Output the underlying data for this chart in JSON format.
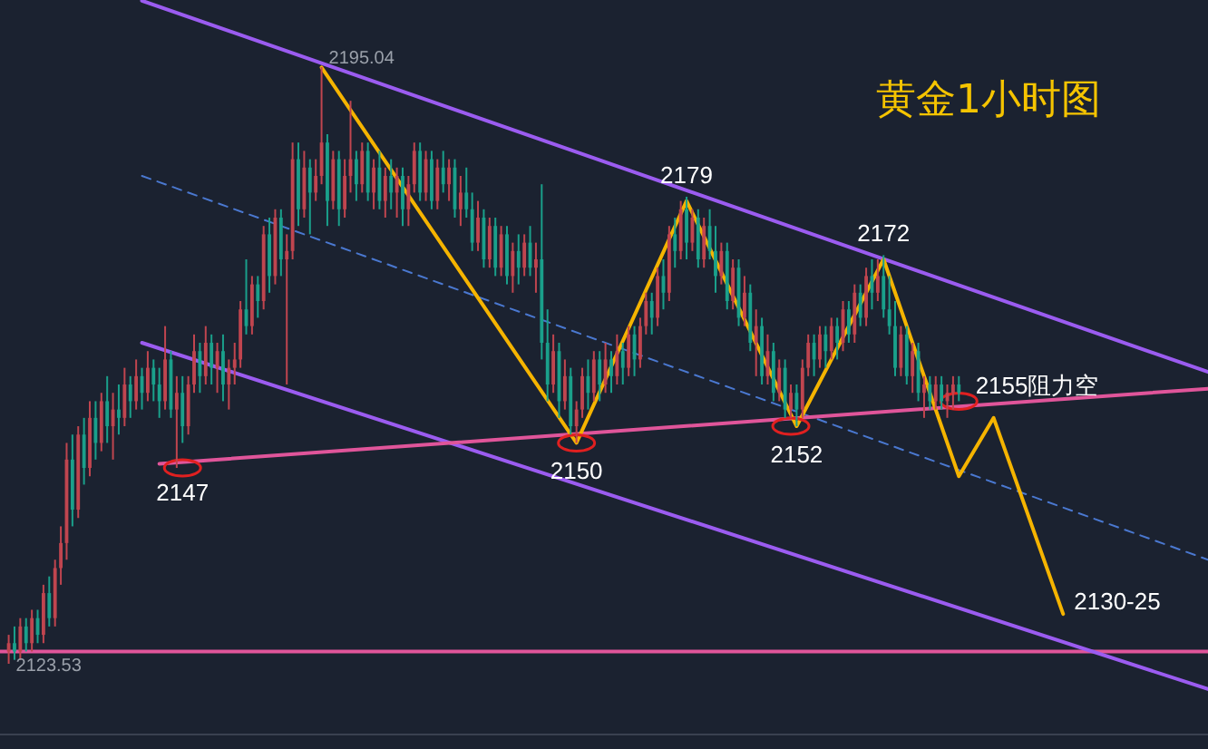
{
  "chart_data": {
    "type": "candlestick",
    "title": "黄金1小时图",
    "categories": [
      null,
      null,
      null,
      null,
      null,
      null,
      null,
      null,
      null,
      null,
      null,
      null,
      null,
      null,
      null,
      null,
      null,
      null,
      null,
      null,
      null,
      null,
      null,
      null,
      null,
      null,
      null,
      null,
      null,
      null,
      null,
      null,
      null,
      null,
      null,
      null,
      null,
      null,
      null,
      null,
      null,
      null,
      null,
      null,
      null,
      null,
      null,
      null,
      null,
      null,
      null,
      null,
      null,
      null,
      null,
      null,
      null,
      null,
      null,
      null,
      null,
      null,
      null,
      null,
      null,
      null,
      null,
      null,
      null,
      null,
      null,
      null,
      null,
      null,
      null,
      null,
      null,
      null,
      null,
      null,
      null,
      null,
      null,
      null,
      null,
      null,
      null,
      null,
      null,
      null,
      null,
      null,
      null,
      null,
      null,
      null,
      null,
      null,
      null,
      null,
      null,
      null,
      null,
      null,
      null,
      null,
      null,
      null,
      null,
      null,
      null,
      null,
      null,
      null,
      null,
      null,
      null,
      null,
      null,
      null,
      null,
      null,
      null,
      null,
      null,
      null,
      null,
      null,
      null,
      null,
      null,
      null,
      null,
      null,
      null,
      null,
      null,
      null,
      null,
      null,
      null,
      null,
      null,
      null,
      null,
      null,
      null,
      null,
      null,
      null,
      null,
      null,
      null,
      null,
      null,
      null,
      null,
      null,
      null,
      null,
      null,
      null,
      null,
      null,
      null,
      null,
      null,
      null,
      null,
      null,
      null,
      null,
      null,
      null,
      null,
      null,
      null,
      null,
      null,
      null,
      null,
      null,
      null,
      null,
      null,
      null,
      null,
      null,
      null,
      null,
      null,
      null,
      null,
      null,
      null,
      null,
      null,
      null,
      null,
      null,
      null,
      null,
      null,
      null,
      null,
      null,
      null,
      null
    ],
    "colors": [
      "#c0454f",
      "#1aa08b",
      "#c0454f",
      "#1aa08b",
      "#c0454f",
      "#1aa08b",
      "#c0454f",
      "#1aa08b",
      "#c0454f",
      "#c0454f",
      "#c0454f",
      "#1aa08b",
      "#c0454f",
      "#1aa08b",
      "#c0454f",
      "#1aa08b",
      "#c0454f",
      "#1aa08b",
      "#c0454f",
      "#1aa08b",
      "#c0454f",
      "#1aa08b",
      "#c0454f",
      "#1aa08b",
      "#c0454f",
      "#1aa08b",
      "#1aa08b",
      "#c0454f",
      "#1aa08b",
      "#c0454f",
      "#1aa08b",
      "#c0454f",
      "#c0454f",
      "#1aa08b",
      "#c0454f",
      "#1aa08b",
      "#c0454f",
      "#1aa08b",
      "#c0454f",
      "#c0454f",
      "#c0454f",
      "#1aa08b",
      "#c0454f",
      "#1aa08b",
      "#c0454f",
      "#1aa08b",
      "#c0454f",
      "#1aa08b",
      "#c0454f",
      "#c0454f",
      "#1aa08b",
      "#c0454f",
      "#1aa08b",
      "#c0454f",
      "#c0454f",
      "#1aa08b",
      "#c0454f",
      "#1aa08b",
      "#c0454f",
      "#c0454f",
      "#1aa08b",
      "#c0454f",
      "#1aa08b",
      "#c0454f",
      "#1aa08b",
      "#c0454f",
      "#1aa08b",
      "#c0454f",
      "#1aa08b",
      "#c0454f",
      "#c0454f",
      "#1aa08b",
      "#c0454f",
      "#1aa08b",
      "#c0454f",
      "#1aa08b",
      "#c0454f",
      "#1aa08b",
      "#c0454f",
      "#1aa08b",
      "#1aa08b",
      "#c0454f",
      "#1aa08b",
      "#c0454f",
      "#1aa08b",
      "#c0454f",
      "#1aa08b",
      "#c0454f",
      "#1aa08b",
      "#c0454f",
      "#1aa08b",
      "#c0454f",
      "#1aa08b",
      "#1aa08b",
      "#c0454f",
      "#1aa08b",
      "#c0454f",
      "#1aa08b",
      "#c0454f",
      "#c0454f",
      "#1aa08b",
      "#c0454f",
      "#1aa08b",
      "#c0454f",
      "#1aa08b",
      "#c0454f",
      "#1aa08b",
      "#c0454f",
      "#1aa08b",
      "#c0454f",
      "#c0454f",
      "#1aa08b",
      "#c0454f",
      "#1aa08b",
      "#c0454f",
      "#1aa08b",
      "#c0454f",
      "#1aa08b",
      "#c0454f",
      "#1aa08b",
      "#c0454f",
      "#1aa08b",
      "#1aa08b",
      "#c0454f",
      "#1aa08b",
      "#c0454f",
      "#1aa08b",
      "#c0454f",
      "#1aa08b",
      "#c0454f",
      "#1aa08b",
      "#c0454f",
      "#1aa08b",
      "#c0454f",
      "#1aa08b",
      "#c0454f",
      "#1aa08b",
      "#c0454f",
      "#c0454f",
      "#1aa08b",
      "#c0454f",
      "#1aa08b",
      "#c0454f",
      "#1aa08b",
      "#c0454f",
      "#1aa08b",
      "#c0454f",
      "#1aa08b",
      "#c0454f",
      "#1aa08b",
      "#c0454f",
      "#1aa08b",
      "#1aa08b",
      "#1aa08b",
      "#c0454f",
      "#1aa08b",
      "#c0454f",
      "#1aa08b",
      "#c0454f",
      "#1aa08b",
      "#c0454f",
      "#1aa08b",
      "#c0454f",
      "#c0454f",
      "#1aa08b",
      null,
      null,
      null,
      null,
      null,
      null,
      null,
      null,
      null,
      null,
      null,
      null,
      null,
      null,
      null,
      null,
      null,
      null,
      null,
      null,
      null,
      null,
      null,
      null,
      null,
      null,
      null,
      null,
      null,
      null,
      null,
      null,
      null,
      null,
      null,
      null,
      null,
      null,
      null,
      null,
      null,
      null,
      null
    ],
    "ohlc": [
      [
        2125,
        2127,
        2123.53,
        2126
      ],
      [
        2126,
        2128,
        2124,
        2125
      ],
      [
        2125,
        2129,
        2124,
        2128
      ],
      [
        2128,
        2129,
        2125,
        2126
      ],
      [
        2126,
        2130,
        2125,
        2129
      ],
      [
        2129,
        2130,
        2126,
        2127
      ],
      [
        2127,
        2133,
        2126,
        2132
      ],
      [
        2132,
        2134,
        2128,
        2129
      ],
      [
        2129,
        2136,
        2128,
        2135
      ],
      [
        2135,
        2140,
        2133,
        2138
      ],
      [
        2138,
        2150,
        2136,
        2148
      ],
      [
        2148,
        2151,
        2140,
        2142
      ],
      [
        2142,
        2152,
        2141,
        2151
      ],
      [
        2151,
        2153,
        2145,
        2147
      ],
      [
        2147,
        2155,
        2146,
        2153
      ],
      [
        2153,
        2155,
        2148,
        2150
      ],
      [
        2150,
        2156,
        2149,
        2155
      ],
      [
        2155,
        2158,
        2150,
        2152
      ],
      [
        2152,
        2156,
        2148,
        2154
      ],
      [
        2154,
        2157,
        2151,
        2153
      ],
      [
        2153,
        2159,
        2152,
        2157
      ],
      [
        2157,
        2158,
        2153,
        2155
      ],
      [
        2155,
        2160,
        2154,
        2158
      ],
      [
        2158,
        2159,
        2154,
        2156
      ],
      [
        2156,
        2161,
        2155,
        2159
      ],
      [
        2159,
        2160,
        2155,
        2157
      ],
      [
        2157,
        2159,
        2153,
        2155
      ],
      [
        2155,
        2164,
        2154,
        2160
      ],
      [
        2160,
        2161,
        2153,
        2154
      ],
      [
        2154,
        2158,
        2147,
        2156
      ],
      [
        2156,
        2158,
        2150,
        2152
      ],
      [
        2152,
        2158,
        2151,
        2157
      ],
      [
        2157,
        2163,
        2156,
        2161
      ],
      [
        2161,
        2162,
        2156,
        2158
      ],
      [
        2158,
        2164,
        2157,
        2162
      ],
      [
        2162,
        2163,
        2157,
        2159
      ],
      [
        2159,
        2162,
        2156,
        2161
      ],
      [
        2161,
        2163,
        2155,
        2157
      ],
      [
        2157,
        2160,
        2154,
        2159
      ],
      [
        2159,
        2162,
        2157,
        2160
      ],
      [
        2160,
        2167,
        2159,
        2166
      ],
      [
        2166,
        2172,
        2163,
        2164
      ],
      [
        2164,
        2170,
        2163,
        2169
      ],
      [
        2169,
        2170,
        2165,
        2167
      ],
      [
        2167,
        2176,
        2166,
        2175
      ],
      [
        2175,
        2177,
        2168,
        2170
      ],
      [
        2170,
        2178,
        2169,
        2177
      ],
      [
        2177,
        2178,
        2170,
        2172
      ],
      [
        2172,
        2175,
        2157,
        2173
      ],
      [
        2173,
        2186,
        2172,
        2184
      ],
      [
        2184,
        2186,
        2176,
        2178
      ],
      [
        2178,
        2185,
        2177,
        2183
      ],
      [
        2183,
        2184,
        2175,
        2180
      ],
      [
        2180,
        2184,
        2179,
        2182
      ],
      [
        2182,
        2195.04,
        2181,
        2186
      ],
      [
        2186,
        2187,
        2176,
        2179
      ],
      [
        2179,
        2185,
        2178,
        2184
      ],
      [
        2184,
        2185,
        2176,
        2178
      ],
      [
        2178,
        2184,
        2177,
        2182
      ],
      [
        2182,
        2191,
        2180,
        2184
      ],
      [
        2184,
        2185,
        2179,
        2181
      ],
      [
        2181,
        2186,
        2180,
        2185
      ],
      [
        2185,
        2186,
        2179,
        2180
      ],
      [
        2180,
        2184,
        2178,
        2183
      ],
      [
        2183,
        2185,
        2178,
        2179
      ],
      [
        2179,
        2183,
        2177,
        2182
      ],
      [
        2182,
        2184,
        2178,
        2180
      ],
      [
        2180,
        2183,
        2177,
        2182
      ],
      [
        2182,
        2183,
        2176,
        2178
      ],
      [
        2178,
        2182,
        2176,
        2181
      ],
      [
        2181,
        2186,
        2180,
        2185
      ],
      [
        2185,
        2186,
        2179,
        2180
      ],
      [
        2180,
        2185,
        2179,
        2184
      ],
      [
        2184,
        2185,
        2178,
        2179
      ],
      [
        2179,
        2184,
        2178,
        2183
      ],
      [
        2183,
        2185,
        2180,
        2181
      ],
      [
        2181,
        2184,
        2179,
        2183
      ],
      [
        2183,
        2184,
        2177,
        2178
      ],
      [
        2178,
        2182,
        2176,
        2180
      ],
      [
        2180,
        2183,
        2177,
        2178
      ],
      [
        2178,
        2180,
        2173,
        2174
      ],
      [
        2174,
        2179,
        2173,
        2177
      ],
      [
        2177,
        2178,
        2171,
        2172
      ],
      [
        2172,
        2177,
        2171,
        2176
      ],
      [
        2176,
        2177,
        2170,
        2171
      ],
      [
        2171,
        2176,
        2170,
        2175
      ],
      [
        2175,
        2176,
        2169,
        2170
      ],
      [
        2170,
        2174,
        2168,
        2173
      ],
      [
        2173,
        2175,
        2169,
        2171
      ],
      [
        2171,
        2175,
        2170,
        2174
      ],
      [
        2174,
        2176,
        2170,
        2171
      ],
      [
        2171,
        2174,
        2168,
        2172
      ],
      [
        2172,
        2181,
        2160,
        2162
      ],
      [
        2162,
        2166,
        2155,
        2157
      ],
      [
        2157,
        2163,
        2156,
        2161
      ],
      [
        2161,
        2162,
        2153,
        2155
      ],
      [
        2155,
        2160,
        2154,
        2158
      ],
      [
        2158,
        2159,
        2151,
        2152
      ],
      [
        2152,
        2155,
        2150,
        2154
      ],
      [
        2154,
        2159,
        2153,
        2158
      ],
      [
        2158,
        2160,
        2154,
        2156
      ],
      [
        2156,
        2161,
        2155,
        2160
      ],
      [
        2160,
        2161,
        2155,
        2157
      ],
      [
        2157,
        2162,
        2156,
        2160
      ],
      [
        2160,
        2161,
        2156,
        2158
      ],
      [
        2158,
        2163,
        2157,
        2161
      ],
      [
        2161,
        2162,
        2157,
        2159
      ],
      [
        2159,
        2164,
        2158,
        2163
      ],
      [
        2163,
        2164,
        2158,
        2160
      ],
      [
        2160,
        2165,
        2159,
        2164
      ],
      [
        2164,
        2168,
        2163,
        2167
      ],
      [
        2167,
        2168,
        2163,
        2165
      ],
      [
        2165,
        2171,
        2164,
        2170
      ],
      [
        2170,
        2172,
        2166,
        2168
      ],
      [
        2168,
        2176,
        2167,
        2175
      ],
      [
        2175,
        2177,
        2171,
        2173
      ],
      [
        2173,
        2179,
        2172,
        2178
      ],
      [
        2178,
        2179.5,
        2172,
        2174
      ],
      [
        2174,
        2178,
        2173,
        2177
      ],
      [
        2177,
        2178,
        2171,
        2172
      ],
      [
        2172,
        2177,
        2171,
        2176
      ],
      [
        2176,
        2178,
        2172,
        2173
      ],
      [
        2173,
        2176,
        2168,
        2170
      ],
      [
        2170,
        2174,
        2169,
        2173
      ],
      [
        2173,
        2174,
        2166,
        2167
      ],
      [
        2167,
        2172,
        2166,
        2171
      ],
      [
        2171,
        2172,
        2164,
        2165
      ],
      [
        2165,
        2170,
        2164,
        2168
      ],
      [
        2168,
        2169,
        2161,
        2162
      ],
      [
        2162,
        2166,
        2158,
        2164
      ],
      [
        2164,
        2165,
        2157,
        2158
      ],
      [
        2158,
        2163,
        2157,
        2161
      ],
      [
        2161,
        2162,
        2155,
        2156
      ],
      [
        2156,
        2160,
        2155,
        2159
      ],
      [
        2159,
        2160,
        2153,
        2154
      ],
      [
        2154,
        2157,
        2153,
        2156
      ],
      [
        2156,
        2157,
        2152,
        2154
      ],
      [
        2154,
        2160,
        2153,
        2159
      ],
      [
        2159,
        2163,
        2158,
        2162
      ],
      [
        2162,
        2163,
        2158,
        2160
      ],
      [
        2160,
        2164,
        2159,
        2163
      ],
      [
        2163,
        2164,
        2159,
        2161
      ],
      [
        2161,
        2165,
        2160,
        2164
      ],
      [
        2164,
        2165,
        2160,
        2162
      ],
      [
        2162,
        2167,
        2161,
        2166
      ],
      [
        2166,
        2167,
        2162,
        2163
      ],
      [
        2163,
        2169,
        2162,
        2168
      ],
      [
        2168,
        2169,
        2164,
        2165
      ],
      [
        2165,
        2171,
        2164,
        2170
      ],
      [
        2170,
        2172,
        2166,
        2168
      ],
      [
        2168,
        2172,
        2167,
        2170
      ],
      [
        2170,
        2172.5,
        2165,
        2166
      ],
      [
        2166,
        2170,
        2163,
        2164
      ],
      [
        2164,
        2167,
        2158,
        2159
      ],
      [
        2159,
        2164,
        2158,
        2163
      ],
      [
        2163,
        2164,
        2157,
        2158
      ],
      [
        2158,
        2162,
        2156,
        2161
      ],
      [
        2161,
        2162,
        2155,
        2156
      ],
      [
        2156,
        2158,
        2153,
        2157
      ],
      [
        2157,
        2158,
        2154,
        2155
      ],
      [
        2155,
        2158,
        2154,
        2157
      ],
      [
        2157,
        2158,
        2154,
        2155
      ],
      [
        2155,
        2157,
        2153,
        2156
      ],
      [
        2156,
        2158,
        2154,
        2157
      ],
      [
        2157,
        2158,
        2155,
        2156
      ],
      null,
      null,
      null,
      null,
      null,
      null,
      null,
      null,
      null,
      null,
      null,
      null,
      null,
      null,
      null,
      null,
      null,
      null,
      null,
      null,
      null,
      null,
      null,
      null,
      null,
      null,
      null,
      null,
      null,
      null,
      null,
      null,
      null,
      null,
      null,
      null,
      null,
      null,
      null,
      null,
      null,
      null,
      null
    ],
    "series": [
      {
        "type": "line",
        "color": "#9b5cf0",
        "line_style": "solid",
        "values": [
          null,
          null,
          null,
          null,
          null,
          null,
          null,
          null,
          null,
          null,
          null,
          null,
          null,
          null,
          null,
          null,
          null,
          null,
          null,
          null,
          null,
          null,
          null,
          2203,
          null,
          null,
          null,
          null,
          null,
          null,
          null,
          null,
          null,
          null,
          null,
          null,
          null,
          null,
          null,
          null,
          null,
          null,
          null,
          null,
          null,
          null,
          null,
          null,
          null,
          null,
          null,
          null,
          null,
          null,
          null,
          null,
          null,
          null,
          null,
          null,
          null,
          null,
          null,
          null,
          null,
          null,
          null,
          null,
          null,
          null,
          null,
          null,
          null,
          null,
          null,
          null,
          null,
          null,
          null,
          null,
          null,
          null,
          null,
          null,
          null,
          null,
          null,
          null,
          null,
          null,
          null,
          null,
          null,
          null,
          null,
          null,
          null,
          null,
          null,
          null,
          null,
          null,
          null,
          null,
          null,
          null,
          null,
          null,
          null,
          null,
          null,
          null,
          null,
          null,
          null,
          null,
          null,
          null,
          null,
          null,
          null,
          null,
          null,
          null,
          null,
          null,
          null,
          null,
          null,
          null,
          null,
          null,
          null,
          null,
          null,
          null,
          null,
          null,
          null,
          null,
          null,
          null,
          null,
          null,
          null,
          null,
          null,
          null,
          null,
          null,
          null,
          null,
          null,
          null,
          null,
          null,
          null,
          null,
          null,
          null,
          null,
          null,
          null,
          null,
          null,
          null,
          null,
          null,
          null,
          null,
          null,
          null,
          null,
          null,
          null,
          null,
          null,
          null,
          null,
          null,
          null,
          null,
          null,
          null,
          null,
          null,
          null,
          null,
          null,
          null,
          null,
          null,
          null,
          null,
          null,
          null,
          null,
          null,
          null,
          null,
          null,
          null,
          null,
          null,
          null,
          null,
          null,
          2158.5
        ]
      },
      {
        "type": "line",
        "color": "#9b5cf0",
        "line_style": "solid",
        "values": [
          null,
          null,
          null,
          null,
          null,
          null,
          null,
          null,
          null,
          null,
          null,
          null,
          null,
          null,
          null,
          null,
          null,
          null,
          null,
          null,
          null,
          null,
          null,
          2162,
          null,
          null,
          null,
          null,
          null,
          null,
          null,
          null,
          null,
          null,
          null,
          null,
          null,
          null,
          null,
          null,
          null,
          null,
          null,
          null,
          null,
          null,
          null,
          null,
          null,
          null,
          null,
          null,
          null,
          null,
          null,
          null,
          null,
          null,
          null,
          null,
          null,
          null,
          null,
          null,
          null,
          null,
          null,
          null,
          null,
          null,
          null,
          null,
          null,
          null,
          null,
          null,
          null,
          null,
          null,
          null,
          null,
          null,
          null,
          null,
          null,
          null,
          null,
          null,
          null,
          null,
          null,
          null,
          null,
          null,
          null,
          null,
          null,
          null,
          null,
          null,
          null,
          null,
          null,
          null,
          null,
          null,
          null,
          null,
          null,
          null,
          null,
          null,
          null,
          null,
          null,
          null,
          null,
          null,
          null,
          null,
          null,
          null,
          null,
          null,
          null,
          null,
          null,
          null,
          null,
          null,
          null,
          null,
          null,
          null,
          null,
          null,
          null,
          null,
          null,
          null,
          null,
          null,
          null,
          null,
          null,
          null,
          null,
          null,
          null,
          null,
          null,
          null,
          null,
          null,
          null,
          null,
          null,
          null,
          null,
          null,
          null,
          null,
          null,
          null,
          null,
          null,
          null,
          null,
          null,
          null,
          null,
          null,
          null,
          null,
          null,
          null,
          null,
          null,
          null,
          null,
          null,
          null,
          null,
          null,
          null,
          null,
          null,
          null,
          null,
          null,
          null,
          null,
          null,
          null,
          null,
          null,
          null,
          null,
          null,
          null,
          null,
          null,
          null,
          null,
          null,
          null,
          null,
          2120.5
        ]
      },
      {
        "type": "line",
        "color": "#4a78d0",
        "line_style": "dashed",
        "values": [
          null,
          null,
          null,
          null,
          null,
          null,
          null,
          null,
          null,
          null,
          null,
          null,
          null,
          null,
          null,
          null,
          null,
          null,
          null,
          null,
          null,
          null,
          null,
          2182,
          null,
          null,
          null,
          null,
          null,
          null,
          null,
          null,
          null,
          null,
          null,
          null,
          null,
          null,
          null,
          null,
          null,
          null,
          null,
          null,
          null,
          null,
          null,
          null,
          null,
          null,
          null,
          null,
          null,
          null,
          null,
          null,
          null,
          null,
          null,
          null,
          null,
          null,
          null,
          null,
          null,
          null,
          null,
          null,
          null,
          null,
          null,
          null,
          null,
          null,
          null,
          null,
          null,
          null,
          null,
          null,
          null,
          null,
          null,
          null,
          null,
          null,
          null,
          null,
          null,
          null,
          null,
          null,
          null,
          null,
          null,
          null,
          null,
          null,
          null,
          null,
          null,
          null,
          null,
          null,
          null,
          null,
          null,
          null,
          null,
          null,
          null,
          null,
          null,
          null,
          null,
          null,
          null,
          null,
          null,
          null,
          null,
          null,
          null,
          null,
          null,
          null,
          null,
          null,
          null,
          null,
          null,
          null,
          null,
          null,
          null,
          null,
          null,
          null,
          null,
          null,
          null,
          null,
          null,
          null,
          null,
          null,
          null,
          null,
          null,
          null,
          null,
          null,
          null,
          null,
          null,
          null,
          null,
          null,
          null,
          null,
          null,
          null,
          null,
          null,
          null,
          null,
          null,
          null,
          null,
          null,
          null,
          null,
          null,
          null,
          null,
          null,
          null,
          null,
          null,
          null,
          null,
          null,
          null,
          null,
          null,
          null,
          null,
          null,
          null,
          null,
          null,
          null,
          null,
          null,
          null,
          null,
          null,
          null,
          null,
          null,
          null,
          null,
          null,
          null,
          null,
          null,
          null,
          2136
        ]
      },
      {
        "type": "line",
        "color": "#e0559a",
        "line_style": "solid",
        "values": [
          null,
          null,
          null,
          null,
          null,
          null,
          null,
          null,
          null,
          null,
          null,
          null,
          null,
          null,
          null,
          null,
          null,
          null,
          null,
          null,
          null,
          null,
          null,
          null,
          null,
          null,
          2147.5,
          null,
          null,
          null,
          null,
          null,
          null,
          null,
          null,
          null,
          null,
          null,
          null,
          null,
          null,
          null,
          null,
          null,
          null,
          null,
          null,
          null,
          null,
          null,
          null,
          null,
          null,
          null,
          null,
          null,
          null,
          null,
          null,
          null,
          null,
          null,
          null,
          null,
          null,
          null,
          null,
          null,
          null,
          null,
          null,
          null,
          null,
          null,
          null,
          null,
          null,
          null,
          null,
          null,
          null,
          null,
          null,
          null,
          null,
          null,
          null,
          null,
          null,
          null,
          null,
          null,
          null,
          null,
          null,
          null,
          null,
          null,
          null,
          null,
          null,
          null,
          null,
          null,
          null,
          null,
          null,
          null,
          null,
          null,
          null,
          null,
          null,
          null,
          null,
          null,
          null,
          null,
          null,
          null,
          null,
          null,
          null,
          null,
          null,
          null,
          null,
          null,
          null,
          null,
          null,
          null,
          null,
          null,
          null,
          null,
          null,
          null,
          null,
          null,
          null,
          null,
          null,
          null,
          null,
          null,
          null,
          null,
          null,
          null,
          null,
          null,
          null,
          null,
          null,
          null,
          null,
          null,
          null,
          null,
          null,
          null,
          null,
          null,
          null,
          null,
          null,
          null,
          null,
          null,
          null,
          null,
          null,
          null,
          null,
          null,
          null,
          null,
          null,
          null,
          null,
          null,
          null,
          null,
          null,
          null,
          null,
          null,
          null,
          null,
          null,
          null,
          null,
          null,
          null,
          null,
          null,
          null,
          null,
          null,
          null,
          null,
          null,
          null,
          null,
          null,
          null,
          2156.5
        ]
      },
      {
        "type": "line",
        "color": "#f5b400",
        "line_style": "solid",
        "values": [
          null,
          null,
          null,
          null,
          null,
          null,
          null,
          null,
          null,
          null,
          null,
          null,
          null,
          null,
          null,
          null,
          null,
          null,
          null,
          null,
          null,
          null,
          null,
          null,
          null,
          null,
          null,
          null,
          null,
          null,
          null,
          null,
          null,
          null,
          null,
          null,
          null,
          null,
          null,
          null,
          null,
          null,
          null,
          null,
          null,
          null,
          null,
          null,
          null,
          null,
          null,
          null,
          null,
          null,
          2195,
          null,
          null,
          null,
          null,
          null,
          null,
          null,
          null,
          null,
          null,
          null,
          null,
          null,
          null,
          null,
          null,
          null,
          null,
          null,
          null,
          null,
          null,
          null,
          null,
          null,
          null,
          null,
          null,
          null,
          null,
          null,
          null,
          null,
          null,
          null,
          null,
          null,
          null,
          null,
          null,
          null,
          null,
          null,
          2150,
          null,
          null,
          null,
          null,
          null,
          null,
          null,
          null,
          null,
          null,
          null,
          null,
          null,
          null,
          null,
          null,
          null,
          null,
          2179,
          null,
          null,
          null,
          null,
          null,
          null,
          null,
          null,
          null,
          null,
          null,
          null,
          null,
          null,
          null,
          null,
          null,
          null,
          2152,
          null,
          null,
          null,
          null,
          null,
          null,
          null,
          null,
          null,
          null,
          null,
          null,
          null,
          null,
          2172,
          null,
          null,
          null,
          null,
          null,
          null,
          null,
          null,
          null,
          null,
          null,
          null,
          2146,
          null,
          null,
          null,
          null,
          null,
          2153,
          null,
          null,
          null,
          null,
          null,
          null,
          null,
          null,
          null,
          null,
          null,
          2129.5,
          null,
          null,
          null,
          null,
          null,
          null,
          null,
          null,
          null,
          null,
          null,
          null,
          null,
          null,
          null,
          null,
          null,
          null,
          null,
          null,
          null,
          null,
          null,
          null,
          null
        ]
      },
      {
        "type": "scatter",
        "color": "#e02020",
        "marker": "circle",
        "values": [
          null,
          null,
          null,
          null,
          null,
          null,
          null,
          null,
          null,
          null,
          null,
          null,
          null,
          null,
          null,
          null,
          null,
          null,
          null,
          null,
          null,
          null,
          null,
          null,
          null,
          null,
          null,
          null,
          null,
          null,
          2147,
          null,
          null,
          null,
          null,
          null,
          null,
          null,
          null,
          null,
          null,
          null,
          null,
          null,
          null,
          null,
          null,
          null,
          null,
          null,
          null,
          null,
          null,
          null,
          null,
          null,
          null,
          null,
          null,
          null,
          null,
          null,
          null,
          null,
          null,
          null,
          null,
          null,
          null,
          null,
          null,
          null,
          null,
          null,
          null,
          null,
          null,
          null,
          null,
          null,
          null,
          null,
          null,
          null,
          null,
          null,
          null,
          null,
          null,
          null,
          null,
          null,
          null,
          null,
          null,
          null,
          null,
          null,
          2150,
          null,
          null,
          null,
          null,
          null,
          null,
          null,
          null,
          null,
          null,
          null,
          null,
          null,
          null,
          null,
          null,
          null,
          null,
          null,
          null,
          null,
          null,
          null,
          null,
          null,
          null,
          null,
          null,
          null,
          null,
          null,
          null,
          null,
          null,
          null,
          null,
          2152,
          null,
          null,
          null,
          null,
          null,
          null,
          null,
          null,
          null,
          null,
          null,
          null,
          null,
          null,
          null,
          null,
          null,
          null,
          null,
          null,
          null,
          null,
          null,
          null,
          null,
          null,
          null,
          null,
          2155,
          null,
          null,
          null,
          null,
          null,
          null,
          null,
          null,
          null,
          null,
          null,
          null,
          null,
          null,
          null,
          null,
          null,
          null,
          null,
          null,
          null,
          null,
          null,
          null,
          null,
          null,
          null,
          null,
          null,
          null,
          null,
          null,
          null,
          null,
          null,
          null,
          null,
          null,
          null,
          null,
          null,
          null,
          null
        ]
      }
    ],
    "ref_lines": [
      {
        "axis": "y",
        "value": 2125,
        "color": "#e0559a",
        "line_style": "solid"
      }
    ],
    "annotations": [
      {
        "text": "2195.04",
        "y": 2195.04
      },
      "2123.53",
      {
        "text": "2147",
        "y": 2147
      },
      {
        "text": "2150",
        "y": 2150
      },
      {
        "text": "2179",
        "y": 2179
      },
      {
        "text": "2152",
        "y": 2152
      },
      {
        "text": "2172",
        "y": 2172
      },
      {
        "text": "2155阻力空",
        "y": 2155
      },
      "2130-25"
    ]
  }
}
